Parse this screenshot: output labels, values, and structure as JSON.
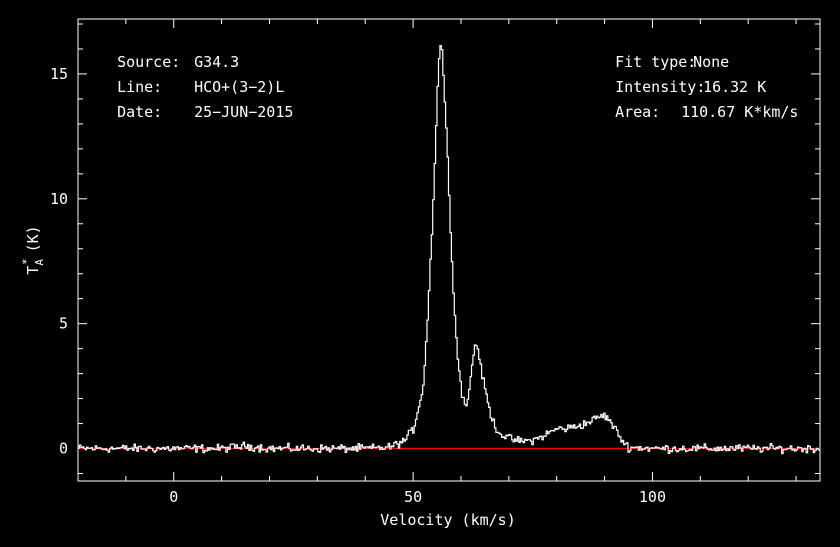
{
  "header": {
    "source_label": "Source:",
    "source_value": "G34.3",
    "line_label": "Line:",
    "line_value": "HCO+(3−2)L",
    "date_label": "Date:",
    "date_value": "25−JUN−2015",
    "fittype_label": "Fit type:",
    "fittype_value": "None",
    "intensity_label": "Intensity:",
    "intensity_value": "16.32 K",
    "area_label": "Area:",
    "area_value": "110.67 K*km/s"
  },
  "chart_data": {
    "type": "line",
    "xlabel": "Velocity (km/s)",
    "ylabel": "T",
    "ylabel_sub": "A",
    "ylabel_sup": "*",
    "ylabel_unit": "(K)",
    "xlim": [
      -20,
      135
    ],
    "ylim": [
      -1.3,
      17.2
    ],
    "xticks": [
      0,
      50,
      100
    ],
    "yticks": [
      0,
      5,
      10,
      15
    ],
    "baseline": 0,
    "line_color": "#ffffff",
    "baseline_color": "#ff0000",
    "series": [
      {
        "x": [
          -20,
          -10,
          0,
          10,
          15,
          20,
          30,
          40,
          45,
          48,
          50,
          52,
          53,
          54,
          55,
          55.5,
          56,
          57,
          58,
          59,
          60,
          61,
          62,
          62.8,
          63.5,
          64,
          65,
          66,
          67,
          68,
          70,
          72,
          74,
          76,
          78,
          80,
          82,
          84,
          86,
          88,
          89,
          90,
          91,
          92,
          93,
          94,
          95,
          100,
          110,
          120,
          135
        ],
        "y": [
          0,
          0,
          0,
          0,
          0.1,
          0,
          0,
          0,
          0.05,
          0.3,
          0.8,
          2.5,
          5.5,
          9.5,
          14.5,
          16.3,
          15.8,
          12.0,
          7.5,
          4.0,
          2.3,
          1.6,
          3.0,
          4.2,
          4.0,
          3.2,
          2.3,
          1.4,
          0.9,
          0.6,
          0.4,
          0.3,
          0.3,
          0.4,
          0.6,
          0.8,
          0.8,
          0.9,
          1.0,
          1.2,
          1.3,
          1.3,
          1.1,
          0.8,
          0.5,
          0.2,
          0.05,
          0,
          0,
          0,
          0
        ]
      }
    ]
  }
}
